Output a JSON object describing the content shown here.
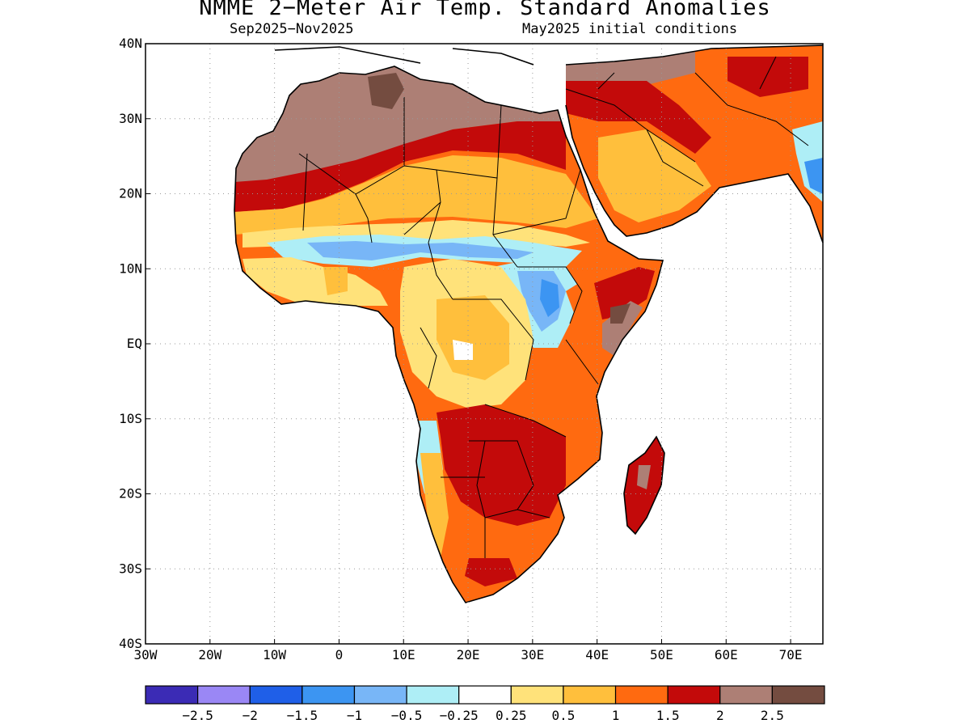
{
  "title": "NMME 2−Meter Air Temp. Standard Anomalies",
  "subtitle_left": "Sep2025−Nov2025",
  "subtitle_right": "May2025 initial conditions",
  "axes": {
    "y_ticks": [
      "40N",
      "30N",
      "20N",
      "10N",
      "EQ",
      "10S",
      "20S",
      "30S",
      "40S"
    ],
    "x_ticks": [
      "30W",
      "20W",
      "10W",
      "0",
      "10E",
      "20E",
      "30E",
      "40E",
      "50E",
      "60E",
      "70E"
    ],
    "lon_range": [
      -30,
      75
    ],
    "lat_range": [
      -40,
      40
    ],
    "grid": "dotted"
  },
  "colorbar": {
    "colors": [
      "#3b2bb5",
      "#9a87f5",
      "#1f5fe8",
      "#3c95f2",
      "#78b6f7",
      "#aeeef6",
      "#ffffff",
      "#ffe27a",
      "#ffbf3c",
      "#ff6a10",
      "#c30a0a",
      "#ad7f75",
      "#744c40"
    ],
    "labels": [
      "−2.5",
      "−2",
      "−1.5",
      "−1",
      "−0.5",
      "−0.25",
      "0.25",
      "0.5",
      "1",
      "1.5",
      "2",
      "2.5"
    ]
  }
}
